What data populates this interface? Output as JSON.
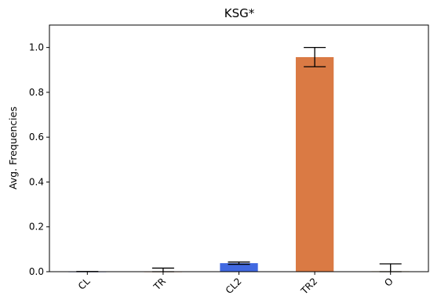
{
  "chart_data": {
    "type": "bar",
    "title": "KSG*",
    "xlabel": "",
    "ylabel": "Avg. Frequencies",
    "categories": [
      "CL",
      "TR",
      "CL2",
      "TR2",
      "O"
    ],
    "values": [
      0.0,
      0.0,
      0.038,
      0.957,
      0.002
    ],
    "errors": [
      0.001,
      0.016,
      0.005,
      0.043,
      0.033
    ],
    "colors": [
      "#4169e1",
      "#e07b39",
      "#4169e1",
      "#da7a44",
      "#c9a227"
    ],
    "ylim": [
      0,
      1.1
    ],
    "yticks": [
      0.0,
      0.2,
      0.4,
      0.6,
      0.8,
      1.0
    ],
    "ytick_labels": [
      "0.0",
      "0.2",
      "0.4",
      "0.6",
      "0.8",
      "1.0"
    ],
    "grid": false,
    "legend": "none"
  }
}
